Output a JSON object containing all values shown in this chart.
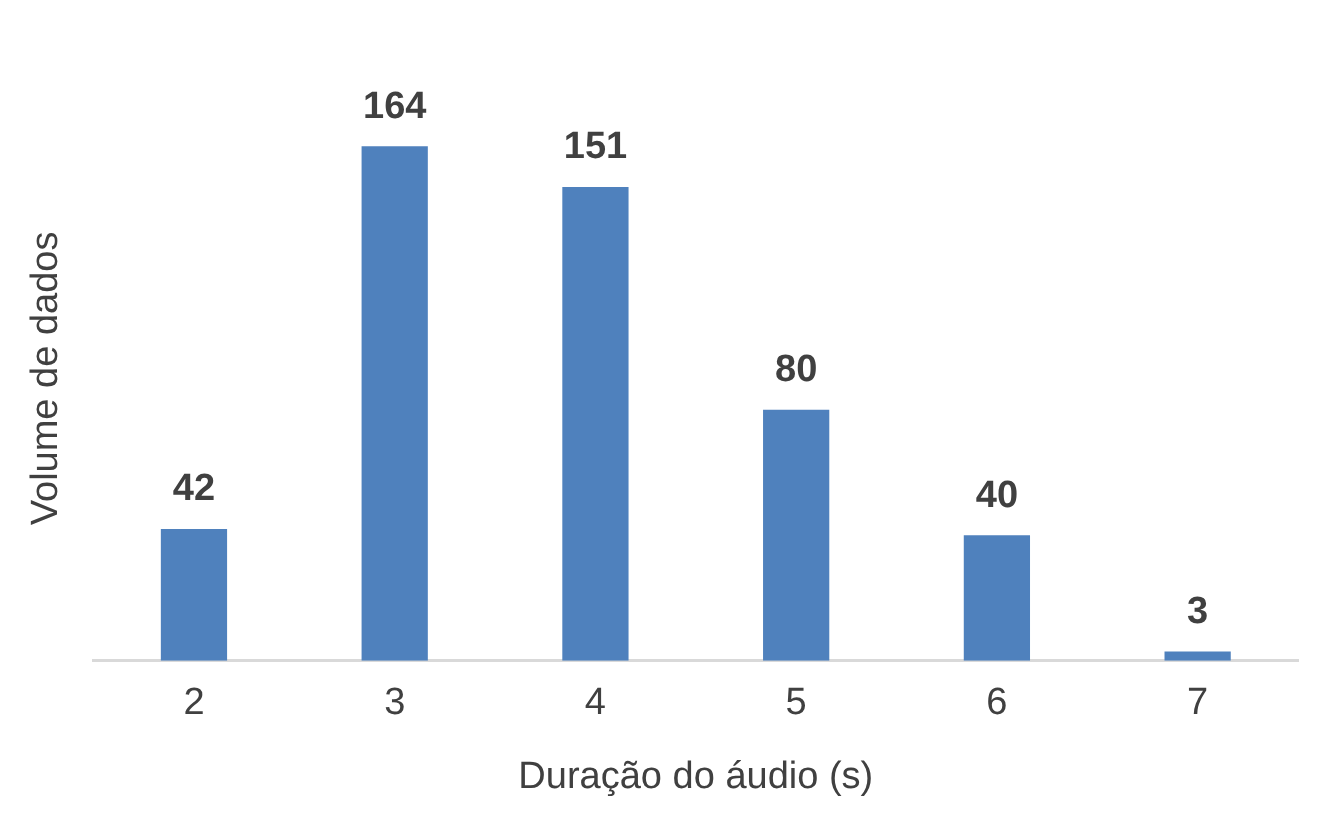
{
  "chart_data": {
    "type": "bar",
    "xlabel": "Duração do áudio (s)",
    "ylabel": "Volume de dados",
    "categories": [
      "2",
      "3",
      "4",
      "5",
      "6",
      "7"
    ],
    "values": [
      42,
      164,
      151,
      80,
      40,
      3
    ],
    "color": "#4f81bd",
    "data_labels": true,
    "grid": false,
    "legend": false
  }
}
